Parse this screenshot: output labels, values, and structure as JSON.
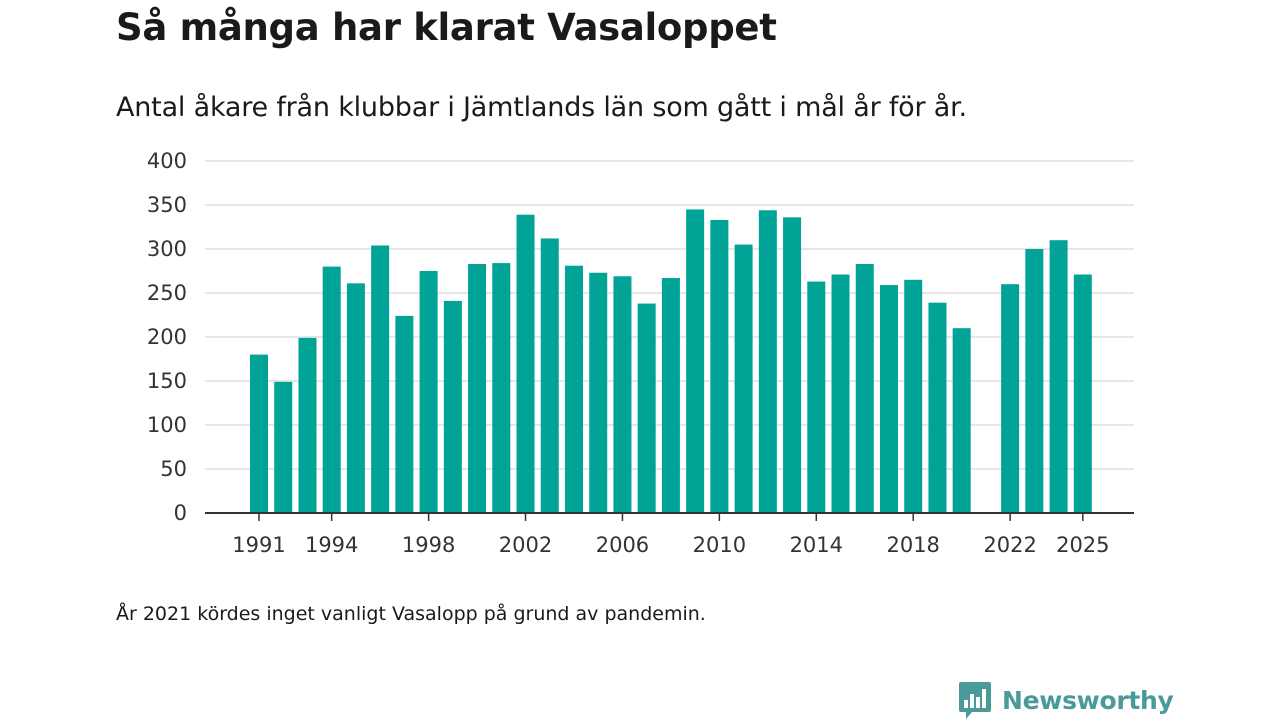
{
  "title": "Så många har klarat Vasaloppet",
  "subtitle": "Antal åkare från klubbar i Jämtlands län som gått i mål år för år.",
  "note": "År 2021 kördes inget vanligt Vasalopp på grund av pandemin.",
  "brand": {
    "name": "Newsworthy",
    "color": "#4a9a9a"
  },
  "colors": {
    "bar": "#00a396",
    "grid": "#dddddd",
    "axis": "#333333"
  },
  "chart_data": {
    "type": "bar",
    "title": "Så många har klarat Vasaloppet",
    "xlabel": "",
    "ylabel": "",
    "ylim": [
      0,
      400
    ],
    "yticks": [
      0,
      50,
      100,
      150,
      200,
      250,
      300,
      350,
      400
    ],
    "xticks": [
      "1991",
      "1994",
      "1998",
      "2002",
      "2006",
      "2010",
      "2014",
      "2018",
      "2022",
      "2025"
    ],
    "categories": [
      "1991",
      "1992",
      "1993",
      "1994",
      "1995",
      "1996",
      "1997",
      "1998",
      "1999",
      "2000",
      "2001",
      "2002",
      "2003",
      "2004",
      "2005",
      "2006",
      "2007",
      "2008",
      "2009",
      "2010",
      "2011",
      "2012",
      "2013",
      "2014",
      "2015",
      "2016",
      "2017",
      "2018",
      "2019",
      "2020",
      "2021",
      "2022",
      "2023",
      "2024",
      "2025"
    ],
    "values": [
      180,
      149,
      199,
      280,
      261,
      304,
      224,
      275,
      241,
      283,
      284,
      339,
      312,
      281,
      273,
      269,
      238,
      267,
      345,
      333,
      305,
      344,
      336,
      263,
      271,
      283,
      259,
      265,
      239,
      210,
      null,
      260,
      300,
      310,
      271
    ]
  }
}
